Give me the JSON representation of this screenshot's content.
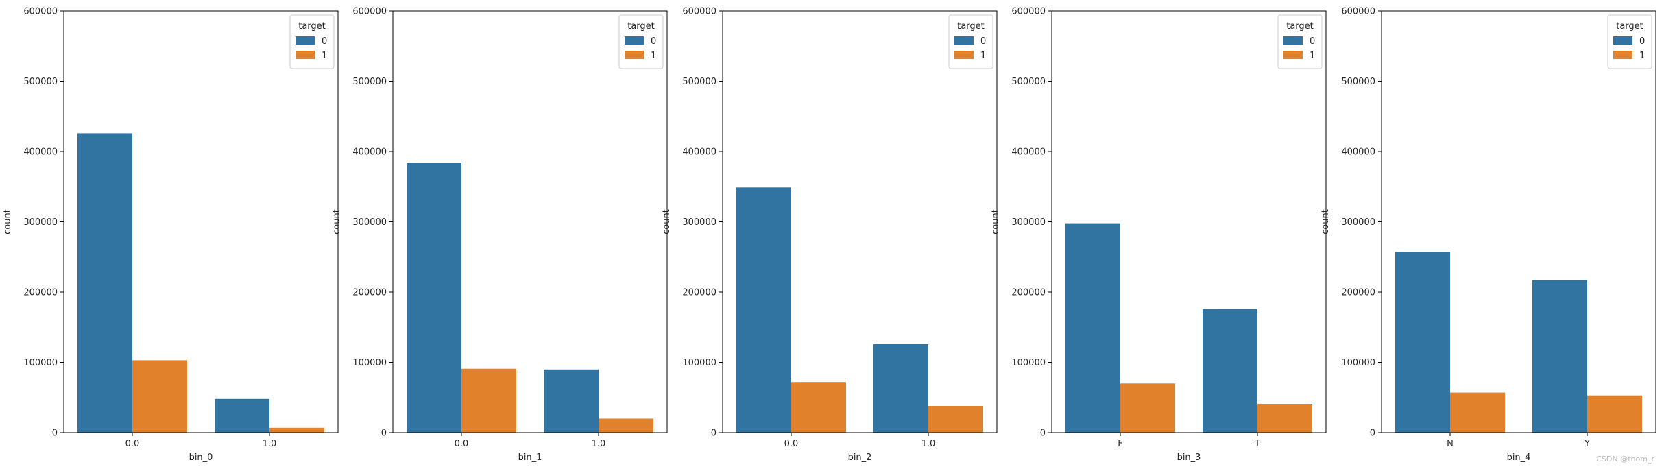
{
  "palette": {
    "series_0": "#3274a1",
    "series_1": "#e1812c",
    "axis": "#000000",
    "text": "#262626"
  },
  "watermark": "CSDN @thom_r",
  "chart_data": [
    {
      "type": "bar",
      "title": "",
      "xlabel": "bin_0",
      "ylabel": "count",
      "categories": [
        "0.0",
        "1.0"
      ],
      "ylim": [
        0,
        600000
      ],
      "yticks": [
        "0",
        "100000",
        "200000",
        "300000",
        "400000",
        "500000",
        "600000"
      ],
      "legend": {
        "title": "target",
        "position": "top-right"
      },
      "series": [
        {
          "name": "0",
          "values": [
            426000,
            48000
          ]
        },
        {
          "name": "1",
          "values": [
            103000,
            7000
          ]
        }
      ]
    },
    {
      "type": "bar",
      "title": "",
      "xlabel": "bin_1",
      "ylabel": "count",
      "categories": [
        "0.0",
        "1.0"
      ],
      "ylim": [
        0,
        600000
      ],
      "yticks": [
        "0",
        "100000",
        "200000",
        "300000",
        "400000",
        "500000",
        "600000"
      ],
      "legend": {
        "title": "target",
        "position": "top-right"
      },
      "series": [
        {
          "name": "0",
          "values": [
            384000,
            90000
          ]
        },
        {
          "name": "1",
          "values": [
            91000,
            20000
          ]
        }
      ]
    },
    {
      "type": "bar",
      "title": "",
      "xlabel": "bin_2",
      "ylabel": "count",
      "categories": [
        "0.0",
        "1.0"
      ],
      "ylim": [
        0,
        600000
      ],
      "yticks": [
        "0",
        "100000",
        "200000",
        "300000",
        "400000",
        "500000",
        "600000"
      ],
      "legend": {
        "title": "target",
        "position": "top-right"
      },
      "series": [
        {
          "name": "0",
          "values": [
            349000,
            126000
          ]
        },
        {
          "name": "1",
          "values": [
            72000,
            38000
          ]
        }
      ]
    },
    {
      "type": "bar",
      "title": "",
      "xlabel": "bin_3",
      "ylabel": "count",
      "categories": [
        "F",
        "T"
      ],
      "ylim": [
        0,
        600000
      ],
      "yticks": [
        "0",
        "100000",
        "200000",
        "300000",
        "400000",
        "500000",
        "600000"
      ],
      "legend": {
        "title": "target",
        "position": "top-right"
      },
      "series": [
        {
          "name": "0",
          "values": [
            298000,
            176000
          ]
        },
        {
          "name": "1",
          "values": [
            70000,
            41000
          ]
        }
      ]
    },
    {
      "type": "bar",
      "title": "",
      "xlabel": "bin_4",
      "ylabel": "count",
      "categories": [
        "N",
        "Y"
      ],
      "ylim": [
        0,
        600000
      ],
      "yticks": [
        "0",
        "100000",
        "200000",
        "300000",
        "400000",
        "500000",
        "600000"
      ],
      "legend": {
        "title": "target",
        "position": "top-right"
      },
      "series": [
        {
          "name": "0",
          "values": [
            257000,
            217000
          ]
        },
        {
          "name": "1",
          "values": [
            57000,
            53000
          ]
        }
      ]
    }
  ]
}
